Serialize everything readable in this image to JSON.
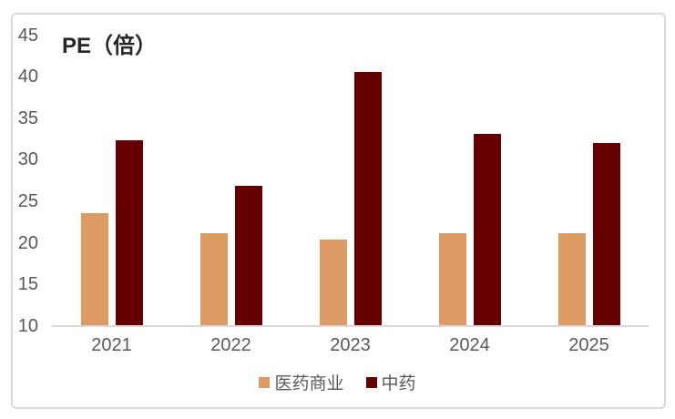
{
  "chart_data": {
    "type": "bar",
    "title": "PE（倍）",
    "categories": [
      "2021",
      "2022",
      "2023",
      "2024",
      "2025"
    ],
    "series": [
      {
        "name": "医药商业",
        "color": "#DD9A62",
        "values": [
          23.5,
          21.1,
          20.3,
          21.1,
          21.1
        ]
      },
      {
        "name": "中药",
        "color": "#670000",
        "values": [
          32.2,
          26.8,
          40.4,
          33.0,
          31.9
        ]
      }
    ],
    "xlabel": "",
    "ylabel": "PE（倍）",
    "ylim": [
      10,
      45
    ],
    "yticks": [
      10,
      15,
      20,
      25,
      30,
      35,
      40,
      45
    ],
    "grid": false,
    "legend_position": "bottom-center",
    "colors": {
      "axis_line": "#D9D9D9",
      "border": "#D9D9D9",
      "tick_text": "#595959",
      "title_text": "#262626",
      "background": "#FFFFFF"
    }
  }
}
